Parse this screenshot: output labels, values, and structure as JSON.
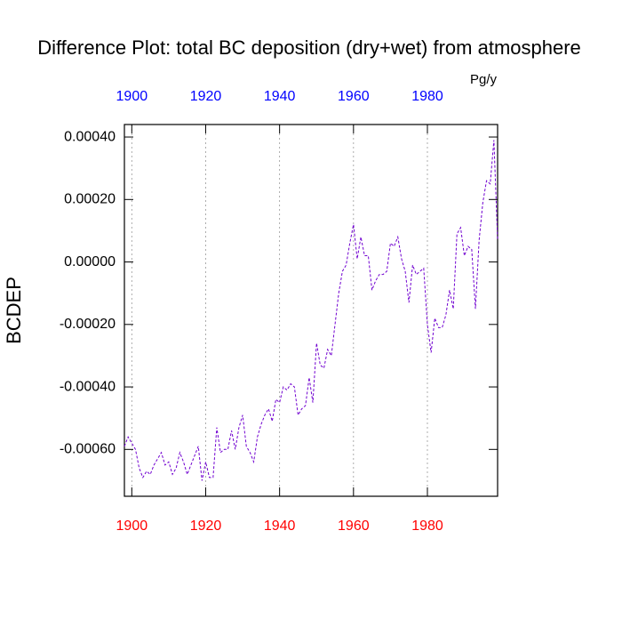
{
  "chart_data": {
    "type": "line",
    "title": "Difference Plot: total BC deposition (dry+wet) from atmosphere",
    "units": "Pg/y",
    "ylabel": "BCDEP",
    "x": [
      1898,
      1899,
      1900,
      1901,
      1902,
      1903,
      1904,
      1905,
      1906,
      1907,
      1908,
      1909,
      1910,
      1911,
      1912,
      1913,
      1914,
      1915,
      1916,
      1917,
      1918,
      1919,
      1920,
      1921,
      1922,
      1923,
      1924,
      1925,
      1926,
      1927,
      1928,
      1929,
      1930,
      1931,
      1932,
      1933,
      1934,
      1935,
      1936,
      1937,
      1938,
      1939,
      1940,
      1941,
      1942,
      1943,
      1944,
      1945,
      1946,
      1947,
      1948,
      1949,
      1950,
      1951,
      1952,
      1953,
      1954,
      1955,
      1956,
      1957,
      1958,
      1959,
      1960,
      1961,
      1962,
      1963,
      1964,
      1965,
      1966,
      1967,
      1968,
      1969,
      1970,
      1971,
      1972,
      1973,
      1974,
      1975,
      1976,
      1977,
      1978,
      1979,
      1980,
      1981,
      1982,
      1983,
      1984,
      1985,
      1986,
      1987,
      1988,
      1989,
      1990,
      1991,
      1992,
      1993,
      1994,
      1995,
      1996,
      1997,
      1998,
      1999
    ],
    "series": [
      {
        "color": "#7000d0",
        "values": [
          -0.00059,
          -0.00056,
          -0.00058,
          -0.0006,
          -0.00066,
          -0.00069,
          -0.00067,
          -0.00068,
          -0.00065,
          -0.00063,
          -0.00061,
          -0.00065,
          -0.00064,
          -0.00068,
          -0.00066,
          -0.00061,
          -0.00064,
          -0.00068,
          -0.00065,
          -0.00062,
          -0.00059,
          -0.0007,
          -0.00064,
          -0.00069,
          -0.00069,
          -0.00053,
          -0.00061,
          -0.0006,
          -0.0006,
          -0.00054,
          -0.0006,
          -0.00053,
          -0.00049,
          -0.00059,
          -0.00061,
          -0.00064,
          -0.00056,
          -0.00052,
          -0.00049,
          -0.00047,
          -0.00051,
          -0.00044,
          -0.00045,
          -0.0004,
          -0.00041,
          -0.00039,
          -0.0004,
          -0.00049,
          -0.00047,
          -0.00046,
          -0.00037,
          -0.00045,
          -0.00026,
          -0.00033,
          -0.00034,
          -0.00028,
          -0.0003,
          -0.0002,
          -0.0001,
          -3e-05,
          -1e-05,
          6e-05,
          0.00012,
          1e-05,
          8e-05,
          2e-05,
          2e-05,
          -9e-05,
          -6e-05,
          -4e-05,
          -4e-05,
          -3e-05,
          6e-05,
          5e-05,
          8e-05,
          1e-05,
          -3e-05,
          -0.00013,
          -1e-05,
          -4e-05,
          -3e-05,
          -2e-05,
          -0.0002,
          -0.00029,
          -0.00018,
          -0.00021,
          -0.00021,
          -0.00017,
          -9e-05,
          -0.00015,
          9e-05,
          0.00011,
          2e-05,
          5e-05,
          4e-05,
          -0.00015,
          7e-05,
          0.00019,
          0.00026,
          0.00025,
          0.00039,
          7e-05
        ]
      }
    ],
    "xlim": [
      1898,
      1999
    ],
    "xticks": [
      1900,
      1920,
      1940,
      1960,
      1980
    ],
    "ylim": [
      -0.00075,
      0.00044
    ],
    "yticks": [
      {
        "value": -0.0006,
        "label": "-0.00060"
      },
      {
        "value": -0.0004,
        "label": "-0.00040"
      },
      {
        "value": -0.0002,
        "label": "-0.00020"
      },
      {
        "value": 0,
        "label": "0.00000"
      },
      {
        "value": 0.0002,
        "label": "0.00020"
      },
      {
        "value": 0.0004,
        "label": "0.00040"
      }
    ],
    "bottom_axis_color": "red",
    "top_axis_color": "blue",
    "grid": true,
    "dashed": true
  }
}
